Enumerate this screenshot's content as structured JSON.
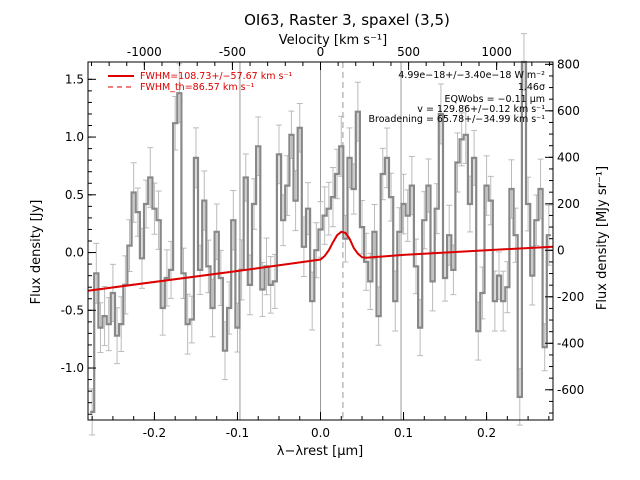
{
  "chart_data": {
    "type": "line",
    "title": "OI63, Raster 3, spaxel (3,5)",
    "xlabel": "λ−λrest [μm]",
    "ylabel": "Flux density [Jy]",
    "top_xlabel": "Velocity [km s⁻¹]",
    "right_ylabel": "Flux density [MJy sr⁻¹]",
    "xlim": [
      -0.28,
      0.28
    ],
    "ylim": [
      -1.45,
      1.65
    ],
    "top_xlim": [
      -1320,
      1320
    ],
    "right_ylim": [
      -730,
      810
    ],
    "x_ticks": [
      "-0.2",
      "-0.1",
      "0.0",
      "0.1",
      "0.2"
    ],
    "x_tick_values": [
      -0.2,
      -0.1,
      0.0,
      0.1,
      0.2
    ],
    "y_ticks": [
      "-1.0",
      "-0.5",
      "0.0",
      "0.5",
      "1.0",
      "1.5"
    ],
    "y_tick_values": [
      -1.0,
      -0.5,
      0.0,
      0.5,
      1.0,
      1.5
    ],
    "top_ticks": [
      "-1000",
      "-500",
      "0",
      "500",
      "1000"
    ],
    "top_tick_values": [
      -1000,
      -500,
      0,
      500,
      1000
    ],
    "right_ticks": [
      "-600",
      "-400",
      "-200",
      "0",
      "200",
      "400",
      "600",
      "800"
    ],
    "right_tick_values": [
      -600,
      -400,
      -200,
      0,
      200,
      400,
      600,
      800
    ],
    "vertical_lines": [
      -0.097,
      0.0,
      0.097
    ],
    "dashed_line": 0.027,
    "grid": false,
    "legend_position": "top-left",
    "series": [
      {
        "name": "FWHM=108.73+/−57.67 km s⁻¹",
        "style": "solid",
        "color": "#dd0000",
        "x": [
          -0.28,
          -0.1,
          0.0,
          0.005,
          0.01,
          0.015,
          0.02,
          0.025,
          0.03,
          0.035,
          0.04,
          0.045,
          0.05,
          0.055,
          0.1,
          0.2,
          0.28
        ],
        "y": [
          -0.33,
          -0.16,
          -0.06,
          -0.03,
          0.02,
          0.09,
          0.15,
          0.18,
          0.17,
          0.12,
          0.04,
          -0.01,
          -0.04,
          -0.045,
          -0.02,
          0.02,
          0.05
        ]
      },
      {
        "name": "FWHM_th=86.57 km s⁻¹",
        "style": "dashed",
        "color": "#dd0000"
      },
      {
        "name": "spectrum",
        "style": "step",
        "color": "#888888",
        "x": [
          -0.275,
          -0.27,
          -0.265,
          -0.26,
          -0.255,
          -0.25,
          -0.245,
          -0.24,
          -0.235,
          -0.23,
          -0.225,
          -0.22,
          -0.215,
          -0.21,
          -0.205,
          -0.2,
          -0.195,
          -0.19,
          -0.185,
          -0.18,
          -0.175,
          -0.17,
          -0.165,
          -0.16,
          -0.155,
          -0.15,
          -0.145,
          -0.14,
          -0.135,
          -0.13,
          -0.125,
          -0.12,
          -0.115,
          -0.11,
          -0.105,
          -0.1,
          -0.095,
          -0.09,
          -0.085,
          -0.08,
          -0.075,
          -0.07,
          -0.065,
          -0.06,
          -0.055,
          -0.05,
          -0.045,
          -0.04,
          -0.035,
          -0.03,
          -0.025,
          -0.02,
          -0.015,
          -0.01,
          -0.005,
          0.0,
          0.005,
          0.01,
          0.015,
          0.02,
          0.025,
          0.03,
          0.035,
          0.04,
          0.045,
          0.05,
          0.055,
          0.06,
          0.065,
          0.07,
          0.075,
          0.08,
          0.085,
          0.09,
          0.095,
          0.1,
          0.105,
          0.11,
          0.115,
          0.12,
          0.125,
          0.13,
          0.135,
          0.14,
          0.145,
          0.15,
          0.155,
          0.16,
          0.165,
          0.17,
          0.175,
          0.18,
          0.185,
          0.19,
          0.195,
          0.2,
          0.205,
          0.21,
          0.215,
          0.22,
          0.225,
          0.23,
          0.235,
          0.24,
          0.245,
          0.25,
          0.255,
          0.26,
          0.265,
          0.27,
          0.275
        ],
        "y": [
          -1.38,
          -0.18,
          -0.65,
          -0.55,
          -0.62,
          -0.35,
          -0.72,
          -0.62,
          -0.28,
          0.06,
          0.52,
          0.35,
          -0.05,
          0.42,
          0.65,
          0.38,
          0.28,
          -0.48,
          -0.22,
          -0.15,
          1.12,
          1.38,
          -0.18,
          -0.62,
          -0.58,
          0.82,
          -0.15,
          0.45,
          -0.12,
          -0.48,
          0.18,
          -0.22,
          -0.85,
          -0.48,
          0.28,
          -0.65,
          -0.15,
          0.65,
          -0.28,
          0.42,
          0.92,
          -0.32,
          -0.12,
          -0.28,
          -0.25,
          0.85,
          0.28,
          0.58,
          1.02,
          0.45,
          1.08,
          0.05,
          0.38,
          -0.42,
          0.02,
          0.2,
          0.32,
          0.38,
          0.48,
          0.68,
          0.92,
          0.12,
          0.82,
          0.55,
          1.22,
          0.22,
          -0.08,
          -0.25,
          0.18,
          -0.55,
          0.68,
          0.82,
          0.48,
          -0.42,
          0.18,
          0.42,
          0.32,
          0.58,
          -0.12,
          -0.65,
          0.28,
          0.58,
          -0.25,
          0.38,
          1.2,
          -0.22,
          0.15,
          -0.15,
          0.78,
          0.98,
          1.02,
          0.42,
          0.82,
          -0.68,
          -0.35,
          0.58,
          0.45,
          -0.42,
          -0.2,
          -0.42,
          -0.3,
          0.55,
          0.15,
          -1.25,
          1.65,
          0.42,
          -0.2,
          0.28,
          0.55,
          -0.82,
          0.15
        ]
      }
    ],
    "annotations": [
      "4.99e−18+/−3.40e−18 W m⁻²",
      "1.46σ",
      "EQWobs = −0.11 μm",
      "v = 129.86+/−0.12 km s⁻¹",
      "Broadening = 65.78+/−34.99 km s⁻¹"
    ],
    "colors": {
      "fit": "#dd0000",
      "spectrum": "#888888",
      "errorbars": "#bbbbbb",
      "reference_lines": "#999999"
    }
  }
}
